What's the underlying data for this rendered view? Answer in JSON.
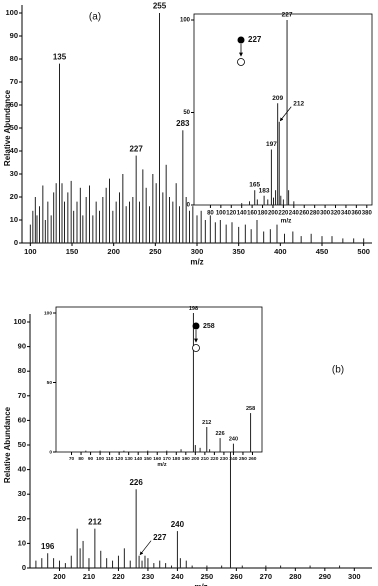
{
  "chart_data": [
    {
      "type": "stem",
      "panel_label": "(a)",
      "ylabel": "Relative Abundance",
      "xlabel": "m/z",
      "frame": "axes",
      "color": "#222222",
      "xlim": [
        90,
        510
      ],
      "ylim": [
        0,
        100
      ],
      "xticks": [
        100,
        150,
        200,
        250,
        300,
        350,
        400,
        450,
        500
      ],
      "yticks": [
        0,
        10,
        20,
        30,
        40,
        50,
        60,
        70,
        80,
        90,
        100
      ],
      "x": [
        100,
        103,
        106,
        108,
        111,
        115,
        118,
        121,
        125,
        128,
        131,
        135,
        138,
        141,
        145,
        149,
        152,
        156,
        160,
        163,
        167,
        171,
        175,
        179,
        183,
        187,
        191,
        195,
        199,
        203,
        207,
        211,
        215,
        219,
        223,
        227,
        231,
        235,
        239,
        243,
        247,
        251,
        255,
        259,
        263,
        267,
        271,
        275,
        279,
        283,
        287,
        291,
        295,
        300,
        305,
        310,
        316,
        322,
        328,
        335,
        342,
        350,
        358,
        365,
        372,
        380,
        388,
        396,
        405,
        415,
        425,
        437,
        450,
        462,
        475,
        488,
        500
      ],
      "values": [
        8,
        14,
        20,
        12,
        16,
        25,
        10,
        18,
        12,
        22,
        26,
        78,
        26,
        18,
        22,
        27,
        14,
        18,
        24,
        12,
        20,
        25,
        12,
        18,
        14,
        20,
        24,
        28,
        14,
        18,
        22,
        30,
        16,
        18,
        20,
        38,
        18,
        32,
        24,
        16,
        30,
        26,
        100,
        22,
        34,
        20,
        18,
        26,
        16,
        49,
        20,
        14,
        16,
        12,
        14,
        10,
        12,
        9,
        10,
        8,
        9,
        7,
        8,
        6,
        10,
        5,
        6,
        8,
        4,
        5,
        3,
        4,
        3,
        3,
        2,
        2,
        2
      ],
      "annotations": [
        {
          "label": "135",
          "x": 135,
          "y": 78
        },
        {
          "label": "227",
          "x": 227,
          "y": 38
        },
        {
          "label": "255",
          "x": 255,
          "y": 100
        },
        {
          "label": "283",
          "x": 283,
          "y": 49
        }
      ]
    },
    {
      "type": "stem",
      "xlabel": "m/z",
      "frame": "box",
      "color": "#222222",
      "precursor": "227",
      "xlim": [
        60,
        390
      ],
      "ylim": [
        0,
        100
      ],
      "xticks": [
        80,
        100,
        120,
        140,
        160,
        180,
        200,
        220,
        240,
        260,
        280,
        300,
        320,
        340,
        360,
        380
      ],
      "yticks": [
        0,
        50,
        100
      ],
      "x": [
        140,
        155,
        165,
        170,
        183,
        190,
        197,
        201,
        205,
        209,
        212,
        215,
        220,
        227,
        230,
        240
      ],
      "values": [
        1,
        2,
        8,
        3,
        5,
        3,
        30,
        4,
        8,
        55,
        45,
        5,
        3,
        100,
        8,
        2
      ],
      "annotations": [
        {
          "label": "165",
          "x": 165,
          "y": 8
        },
        {
          "label": "183",
          "x": 183,
          "y": 5
        },
        {
          "label": "197",
          "x": 197,
          "y": 30
        },
        {
          "label": "209",
          "x": 209,
          "y": 55
        },
        {
          "label": "212",
          "x": 212,
          "y": 45,
          "arrow": true
        },
        {
          "label": "227",
          "x": 227,
          "y": 100
        }
      ]
    },
    {
      "type": "stem",
      "panel_label": "(b)",
      "ylabel": "Relative Abundance",
      "xlabel": "m/z",
      "frame": "axes",
      "color": "#222222",
      "xlim": [
        190,
        306
      ],
      "ylim": [
        0,
        100
      ],
      "xticks": [
        200,
        210,
        220,
        230,
        240,
        250,
        260,
        270,
        280,
        290,
        300
      ],
      "yticks": [
        0,
        10,
        20,
        30,
        40,
        50,
        60,
        70,
        80,
        90,
        100
      ],
      "x": [
        192,
        194,
        196,
        198,
        200,
        202,
        204,
        206,
        207,
        208,
        210,
        212,
        214,
        216,
        218,
        220,
        222,
        224,
        226,
        227,
        228,
        229,
        230,
        232,
        234,
        236,
        238,
        240,
        241,
        243,
        245,
        250,
        255,
        258,
        262,
        270,
        275,
        285,
        295
      ],
      "values": [
        3,
        4,
        6,
        4,
        3,
        2,
        5,
        16,
        8,
        11,
        4,
        16,
        7,
        4,
        3,
        5,
        8,
        3,
        32,
        5,
        3,
        5,
        4,
        2,
        3,
        2,
        1,
        15,
        4,
        3,
        1,
        1,
        1,
        100,
        1,
        1,
        1,
        1,
        1
      ],
      "annotations": [
        {
          "label": "196",
          "x": 196,
          "y": 6
        },
        {
          "label": "212",
          "x": 212,
          "y": 16
        },
        {
          "label": "226",
          "x": 226,
          "y": 32
        },
        {
          "label": "227",
          "x": 227,
          "y": 5,
          "arrow": true
        },
        {
          "label": "240",
          "x": 240,
          "y": 15
        },
        {
          "label": "258",
          "x": 258,
          "y": 100
        }
      ]
    },
    {
      "type": "stem",
      "xlabel": "m/z",
      "frame": "box",
      "color": "#222222",
      "precursor": "258",
      "xlim": [
        60,
        270
      ],
      "ylim": [
        0,
        100
      ],
      "xticks": [
        70,
        80,
        90,
        100,
        110,
        120,
        130,
        140,
        150,
        160,
        170,
        180,
        190,
        200,
        210,
        220,
        230,
        240,
        250,
        260
      ],
      "yticks": [
        0,
        50,
        100
      ],
      "x": [
        85,
        100,
        125,
        150,
        170,
        185,
        198,
        200,
        205,
        212,
        215,
        226,
        240,
        258
      ],
      "values": [
        1,
        1,
        1,
        1,
        1,
        2,
        100,
        5,
        3,
        18,
        2,
        10,
        6,
        28
      ],
      "annotations": [
        {
          "label": "198",
          "x": 198,
          "y": 100
        },
        {
          "label": "212",
          "x": 212,
          "y": 18
        },
        {
          "label": "226",
          "x": 226,
          "y": 10
        },
        {
          "label": "240",
          "x": 240,
          "y": 6
        },
        {
          "label": "258",
          "x": 258,
          "y": 28
        }
      ]
    }
  ]
}
